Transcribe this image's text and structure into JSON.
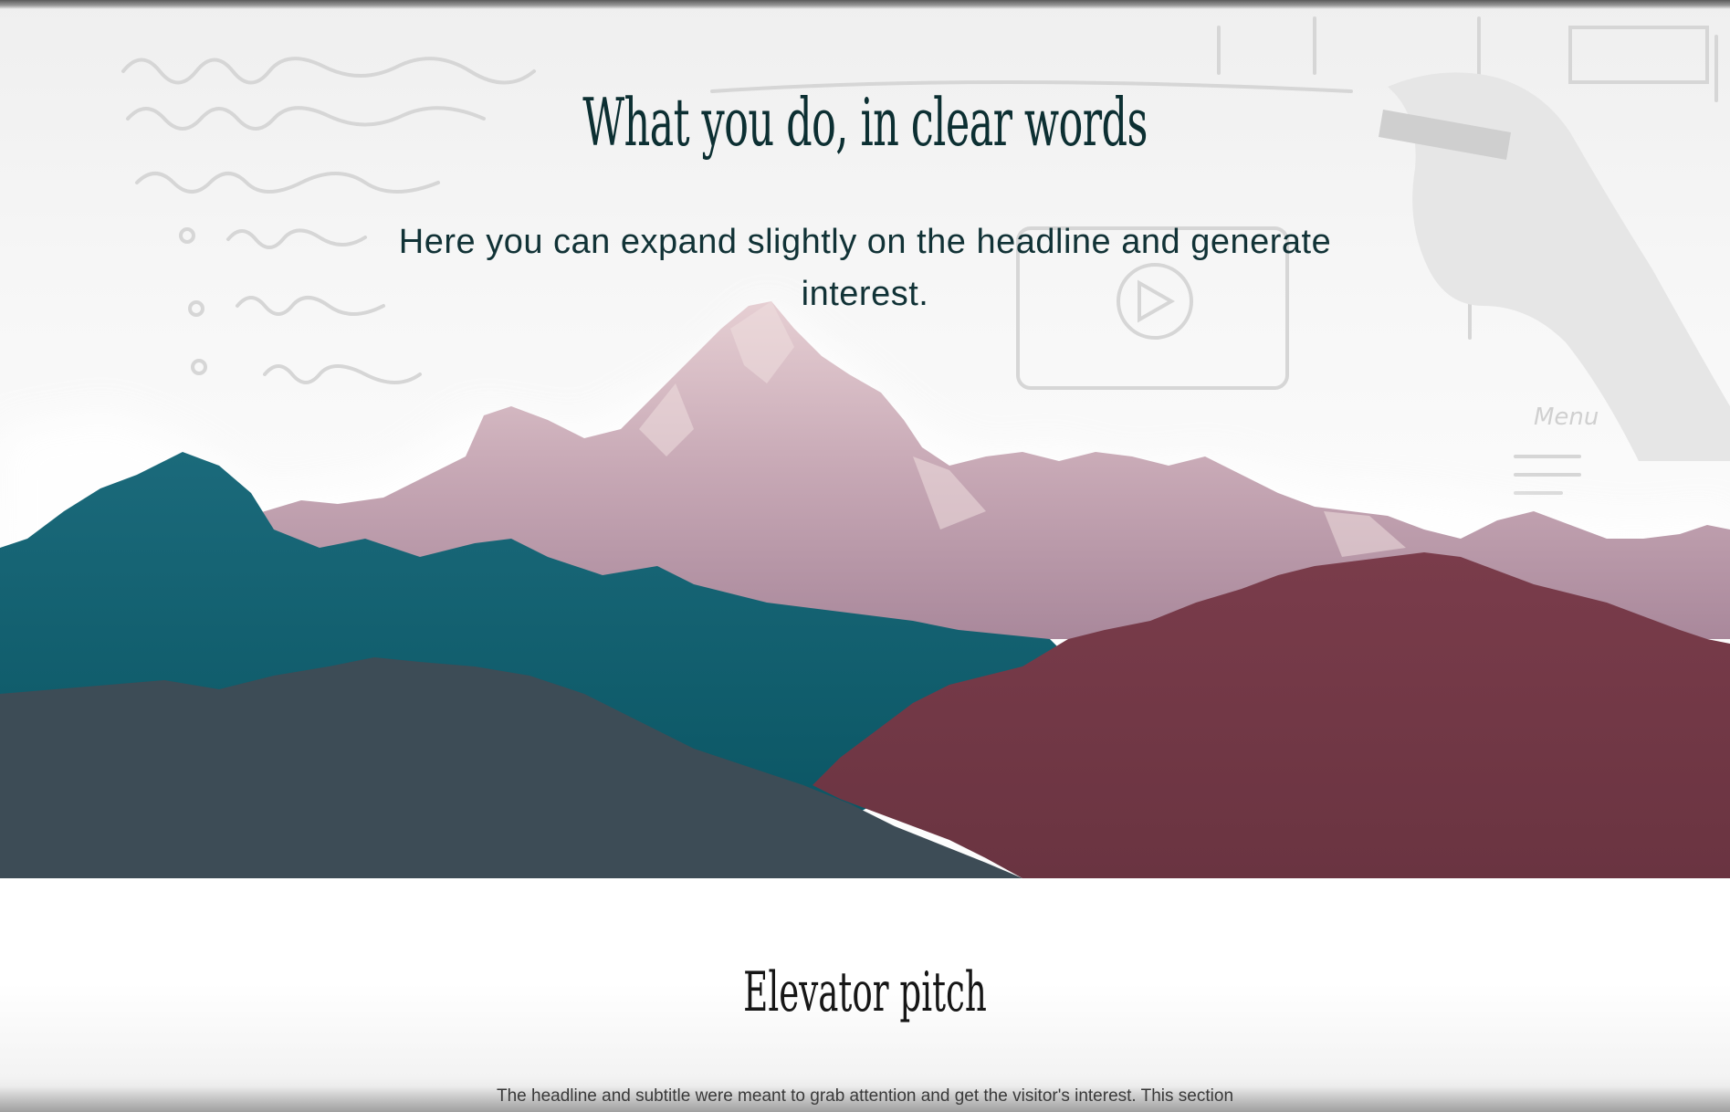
{
  "hero": {
    "title": "What you do, in clear words",
    "subtitle": "Here you can expand slightly on the headline and generate interest.",
    "sketch_text": "Menu"
  },
  "section": {
    "title": "Elevator pitch",
    "text": "The headline and subtitle were meant to grab attention and get the visitor's interest. This section"
  },
  "colors": {
    "heading": "#0c2f32",
    "subtitle": "#113236",
    "snow_peaks": "#c8a8b4",
    "teal_range": "#0d5a6b",
    "slate_range": "#3c4b55",
    "wine_range": "#6e3744"
  }
}
